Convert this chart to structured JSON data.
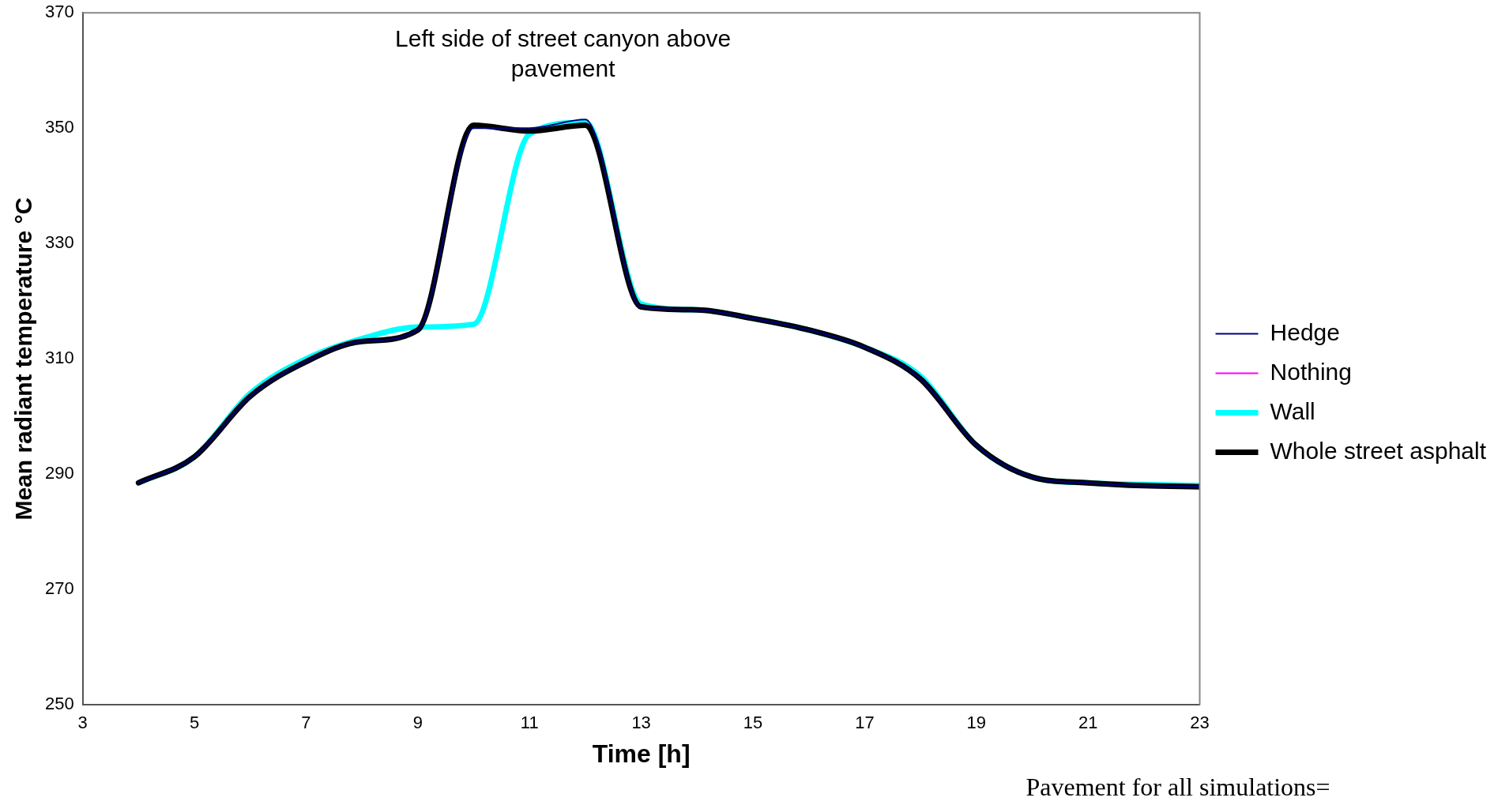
{
  "chart_data": {
    "type": "line",
    "title": "Left side of street canyon above pavement",
    "xlabel": "Time [h]",
    "ylabel": "Mean radiant temperature °C",
    "x": [
      4,
      5,
      6,
      7,
      8,
      9,
      10,
      11,
      12,
      13,
      14,
      15,
      16,
      17,
      18,
      19,
      20,
      21,
      22,
      23
    ],
    "xlim": [
      3,
      23
    ],
    "xticks": [
      3,
      5,
      7,
      9,
      11,
      13,
      15,
      17,
      19,
      21,
      23
    ],
    "ylim": [
      250,
      370
    ],
    "yticks": [
      250,
      270,
      290,
      310,
      330,
      350,
      370
    ],
    "grid": false,
    "legend": "right",
    "marker": "none",
    "line_style": "solid",
    "series": [
      {
        "name": "Hedge",
        "color": "#000080",
        "values": [
          288.5,
          293,
          303.5,
          309.5,
          313,
          315,
          350,
          350,
          351.5,
          319,
          318.5,
          317,
          315,
          312,
          306.5,
          295,
          289.5,
          288.5,
          288,
          287.8
        ]
      },
      {
        "name": "Nothing",
        "color": "#ff00ff",
        "values": [
          null,
          null,
          null,
          null,
          null,
          null,
          null,
          null,
          null,
          null,
          null,
          null,
          null,
          null,
          null,
          null,
          null,
          null,
          null,
          null
        ]
      },
      {
        "name": "Wall",
        "color": "#00ffff",
        "values": [
          288.5,
          293,
          304,
          310,
          313.5,
          315.5,
          316,
          349,
          351,
          319.5,
          318.5,
          317,
          315,
          312,
          307,
          295,
          289.5,
          288.5,
          288.2,
          288
        ]
      },
      {
        "name": "Whole street asphalt",
        "color": "#000000",
        "values": [
          288.5,
          293,
          303.5,
          309.5,
          313,
          315,
          350.5,
          349.5,
          350.5,
          319,
          318.5,
          317,
          315,
          312,
          306.5,
          295,
          289.5,
          288.5,
          288,
          287.8
        ]
      }
    ],
    "annotations": [
      "Pavement for all simulations="
    ]
  }
}
